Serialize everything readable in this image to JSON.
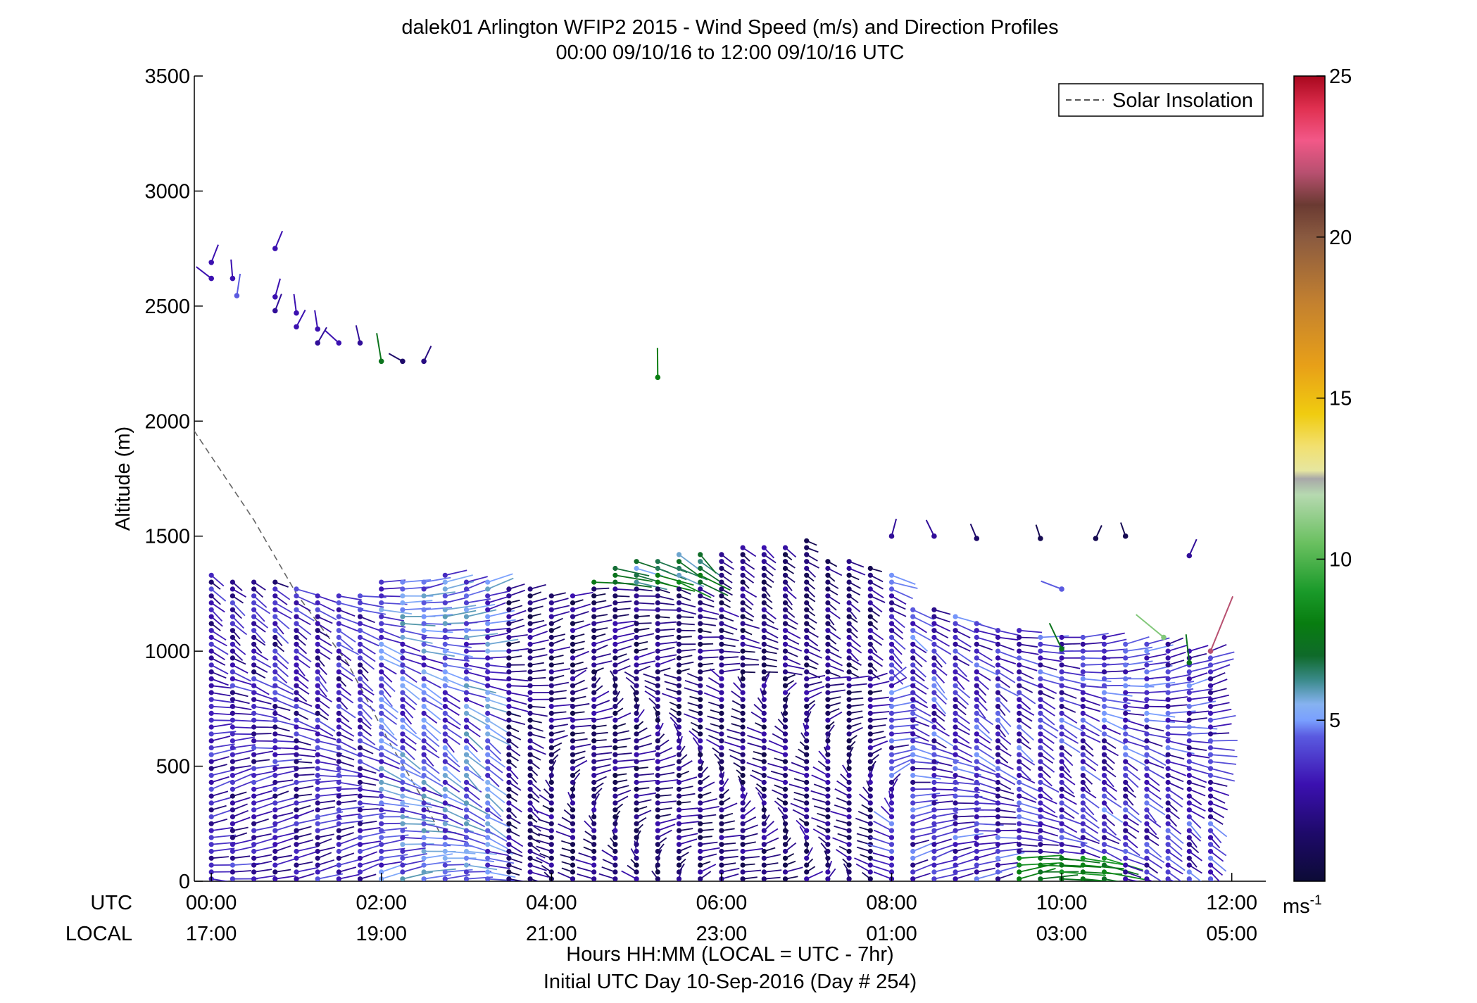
{
  "title": {
    "line1": "dalek01 Arlington WFIP2 2015 - Wind Speed (m/s) and Direction Profiles",
    "line2": "00:00 09/10/16 to 12:00 09/10/16  UTC"
  },
  "legend": {
    "entry": "Solar Insolation",
    "placement": "top-right"
  },
  "axes": {
    "ylabel": "Altitude (m)",
    "xlabel": "Hours HH:MM  (LOCAL = UTC - 7hr)",
    "xlabel2": "Initial UTC Day 10-Sep-2016 (Day # 254)",
    "utc_row_label": "UTC",
    "local_row_label": "LOCAL"
  },
  "colorbar": {
    "unit": "ms",
    "unit_exp": "-1",
    "ticks": [
      "5",
      "10",
      "15",
      "20",
      "25"
    ],
    "range": [
      0,
      25
    ]
  },
  "chart_data": {
    "type": "scatter",
    "subtype": "wind-barb-profiles",
    "x_range_hours_utc": [
      -0.2,
      12.4
    ],
    "ylim": [
      0,
      3500
    ],
    "yticks": [
      "0",
      "500",
      "1000",
      "1500",
      "2000",
      "2500",
      "3000",
      "3500"
    ],
    "xticks_utc": [
      "00:00",
      "02:00",
      "04:00",
      "06:00",
      "08:00",
      "10:00",
      "12:00"
    ],
    "xticks_local": [
      "17:00",
      "19:00",
      "21:00",
      "23:00",
      "01:00",
      "03:00",
      "05:00"
    ],
    "grid": false,
    "solar_insolation_line": [
      [
        -0.55,
        2150
      ],
      [
        0.5,
        1570
      ],
      [
        1.0,
        1250
      ],
      [
        1.6,
        950
      ],
      [
        2.1,
        600
      ],
      [
        2.5,
        350
      ],
      [
        2.7,
        200
      ]
    ],
    "profile_hours_utc": [
      0.0,
      0.25,
      0.5,
      0.75,
      1.0,
      1.25,
      1.5,
      1.75,
      2.0,
      2.25,
      2.5,
      2.75,
      3.0,
      3.25,
      3.5,
      3.75,
      4.0,
      4.25,
      4.5,
      4.75,
      5.0,
      5.25,
      5.5,
      5.75,
      6.0,
      6.25,
      6.5,
      6.75,
      7.0,
      7.25,
      7.5,
      7.75,
      8.0,
      8.25,
      8.5,
      8.75,
      9.0,
      9.25,
      9.5,
      9.75,
      10.0,
      10.25,
      10.5,
      10.75,
      11.0,
      11.25,
      11.5,
      11.75
    ],
    "profile_top_m": [
      1330,
      1300,
      1300,
      1300,
      1290,
      1250,
      1250,
      1250,
      1300,
      1300,
      1300,
      1330,
      1320,
      1300,
      1280,
      1280,
      1260,
      1260,
      1320,
      1380,
      1400,
      1400,
      1430,
      1430,
      1440,
      1470,
      1470,
      1470,
      1480,
      1400,
      1400,
      1380,
      1350,
      1200,
      1180,
      1150,
      1120,
      1100,
      1100,
      1080,
      1060,
      1060,
      1060,
      1050,
      1040,
      1030,
      1020,
      1000
    ],
    "level_spacing_m": 30,
    "upper_level_points": [
      [
        0.0,
        2690,
        3.0
      ],
      [
        0.0,
        2620,
        3.0
      ],
      [
        0.25,
        2620,
        3.0
      ],
      [
        0.3,
        2545,
        4.5
      ],
      [
        0.75,
        2750,
        3.0
      ],
      [
        0.75,
        2540,
        3.0
      ],
      [
        0.75,
        2480,
        2.5
      ],
      [
        1.0,
        2470,
        3.0
      ],
      [
        1.0,
        2410,
        3.0
      ],
      [
        1.25,
        2400,
        3.0
      ],
      [
        1.25,
        2340,
        2.5
      ],
      [
        1.5,
        2340,
        3.0
      ],
      [
        1.75,
        2340,
        2.5
      ],
      [
        2.0,
        2260,
        7.5
      ],
      [
        2.25,
        2260,
        1.5
      ],
      [
        2.5,
        2260,
        2.0
      ],
      [
        5.25,
        2190,
        8.0
      ],
      [
        8.0,
        1500,
        2.5
      ],
      [
        8.5,
        1500,
        2.5
      ],
      [
        9.0,
        1490,
        1.5
      ],
      [
        9.75,
        1490,
        0.8
      ],
      [
        10.4,
        1490,
        0.8
      ],
      [
        10.75,
        1500,
        0.8
      ],
      [
        11.5,
        1415,
        2.5
      ],
      [
        10.0,
        1270,
        4.5
      ],
      [
        11.75,
        1000,
        22.0
      ],
      [
        11.5,
        950,
        7.5
      ],
      [
        11.2,
        1060,
        11.0
      ],
      [
        10.0,
        1010,
        7.5
      ]
    ],
    "speed_regimes": [
      {
        "hours": [
          0.0,
          2.0
        ],
        "speed_range": [
          1.5,
          4.5
        ]
      },
      {
        "hours": [
          2.0,
          3.5
        ],
        "speed_range": [
          3.0,
          6.0
        ]
      },
      {
        "hours": [
          3.5,
          6.0
        ],
        "speed_range": [
          0.5,
          3.0
        ]
      },
      {
        "hours": [
          4.5,
          7.0
        ],
        "levels_above_m": 1300,
        "speed_range": [
          5.0,
          8.5
        ]
      },
      {
        "hours": [
          6.0,
          8.0
        ],
        "speed_range": [
          0.5,
          3.0
        ]
      },
      {
        "hours": [
          8.0,
          12.0
        ],
        "speed_range": [
          2.0,
          5.0
        ]
      },
      {
        "hours": [
          9.5,
          10.5
        ],
        "levels_below_m": 100,
        "speed_range": [
          7.0,
          9.0
        ]
      }
    ]
  }
}
